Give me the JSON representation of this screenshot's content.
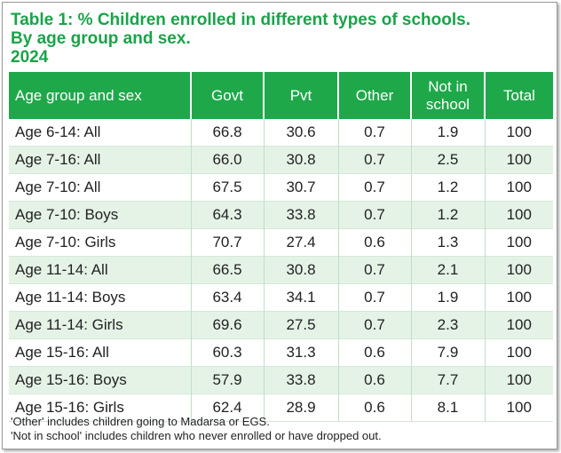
{
  "title": {
    "line1": "Table 1: % Children enrolled in different types of schools.",
    "line2": "By age group and sex.",
    "line3": "2024"
  },
  "table": {
    "headers": [
      "Age group and sex",
      "Govt",
      "Pvt",
      "Other",
      "Not in school",
      "Total"
    ],
    "header_not_in_school": [
      "Not in",
      "school"
    ],
    "rows": [
      [
        "Age 6-14: All",
        "66.8",
        "30.6",
        "0.7",
        "1.9",
        "100"
      ],
      [
        "Age 7-16: All",
        "66.0",
        "30.8",
        "0.7",
        "2.5",
        "100"
      ],
      [
        "Age 7-10: All",
        "67.5",
        "30.7",
        "0.7",
        "1.2",
        "100"
      ],
      [
        "Age 7-10: Boys",
        "64.3",
        "33.8",
        "0.7",
        "1.2",
        "100"
      ],
      [
        "Age 7-10: Girls",
        "70.7",
        "27.4",
        "0.6",
        "1.3",
        "100"
      ],
      [
        "Age 11-14: All",
        "66.5",
        "30.8",
        "0.7",
        "2.1",
        "100"
      ],
      [
        "Age 11-14: Boys",
        "63.4",
        "34.1",
        "0.7",
        "1.9",
        "100"
      ],
      [
        "Age 11-14: Girls",
        "69.6",
        "27.5",
        "0.7",
        "2.3",
        "100"
      ],
      [
        "Age 15-16: All",
        "60.3",
        "31.3",
        "0.6",
        "7.9",
        "100"
      ],
      [
        "Age 15-16: Boys",
        "57.9",
        "33.8",
        "0.6",
        "7.7",
        "100"
      ],
      [
        "Age 15-16: Girls",
        "62.4",
        "28.9",
        "0.6",
        "8.1",
        "100"
      ]
    ]
  },
  "notes": [
    "'Other' includes children going to Madarsa or EGS.",
    "'Not in school' includes children who never enrolled or have dropped out."
  ],
  "colors": {
    "accent_green": "#1ea84a",
    "title_green": "#1aa34a",
    "row_stripe": "#e5f3e7"
  }
}
